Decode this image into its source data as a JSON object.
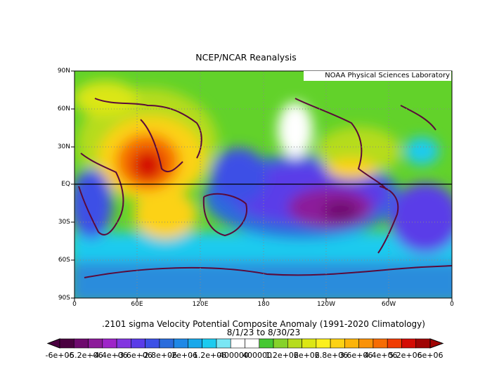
{
  "title": "NCEP/NCAR Reanalysis",
  "credit": "NOAA Physical Sciences Laboratory",
  "caption_line1": ".2101 sigma Velocity Potential  Composite Anomaly (1991-2020 Climatology)",
  "caption_line2": "8/1/23  to 8/30/23",
  "lat_labels": [
    "90N",
    "60N",
    "30N",
    "EQ",
    "30S",
    "60S",
    "90S"
  ],
  "lon_labels": [
    "0",
    "60E",
    "120E",
    "180",
    "120W",
    "60W",
    "0"
  ],
  "colorbar": {
    "colors": [
      "#4a0040",
      "#6e0a6e",
      "#8c1a9a",
      "#9e24c8",
      "#8236e0",
      "#5a3ce8",
      "#3c50e6",
      "#2a6cdc",
      "#1e88e6",
      "#18a8ea",
      "#1ccbef",
      "#7ae6f4",
      "#ffffff",
      "#ffffff",
      "#46c832",
      "#86d22a",
      "#b6dc1e",
      "#dce614",
      "#fcf01e",
      "#fcd214",
      "#fcb40a",
      "#fa9208",
      "#f66c04",
      "#f03c02",
      "#d40c04",
      "#a00404"
    ],
    "tick_labels": [
      "-6e+06",
      "-5.2e+06",
      "-4.4e+06",
      "-3.6e+06",
      "-2.8e+06",
      "-2e+06",
      "-1.2e+06",
      "-400000",
      "400000",
      "1.2e+06",
      "2e+06",
      "2.8e+06",
      "3.6e+06",
      "4.4e+06",
      "5.2e+06",
      "6e+06"
    ]
  }
}
